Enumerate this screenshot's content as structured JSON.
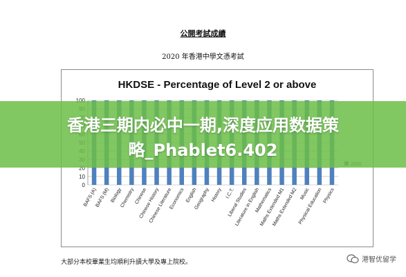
{
  "document": {
    "title": "公開考試成績",
    "subtitle": "2020 年香港中學文憑考試",
    "footer": "大部分本校畢業生均順利升讀大學及專上院校。"
  },
  "banner": {
    "line1": "香港三期内必中一期,深度应用数据策",
    "line2": "略_Phablet6.402"
  },
  "watermark": {
    "text": "港智优留学"
  },
  "colors": {
    "bar": "#4f81bd",
    "banner": "#6cbe48",
    "grid": "#c8c8c8"
  },
  "chart_data": {
    "type": "bar",
    "title": "HKDSE - Percentage of Level 2 or above",
    "categories": [
      "BAFS (A)",
      "BAFS (M)",
      "Biology",
      "Chemistry",
      "Chinese",
      "Chinese History",
      "Chinese Literature",
      "Economics",
      "English",
      "Geography",
      "History",
      "I.C.T.",
      "Liberal Studies",
      "Literature in English",
      "Mathematics",
      "Maths Extended M1",
      "Maths Extended M2",
      "Music",
      "Physical Education",
      "Physics"
    ],
    "series": [
      {
        "name": "2020",
        "values": [
          100,
          100,
          100,
          100,
          100,
          100,
          100,
          100,
          100,
          100,
          100,
          100,
          100,
          100,
          100,
          100,
          100,
          100,
          100,
          100
        ]
      }
    ],
    "yticks": [
      "0",
      "10",
      "20",
      "30",
      "40",
      "50",
      "60",
      "70",
      "80",
      "90",
      "100"
    ],
    "ylim": [
      0,
      100
    ],
    "grid": true,
    "legend_position": "right"
  }
}
